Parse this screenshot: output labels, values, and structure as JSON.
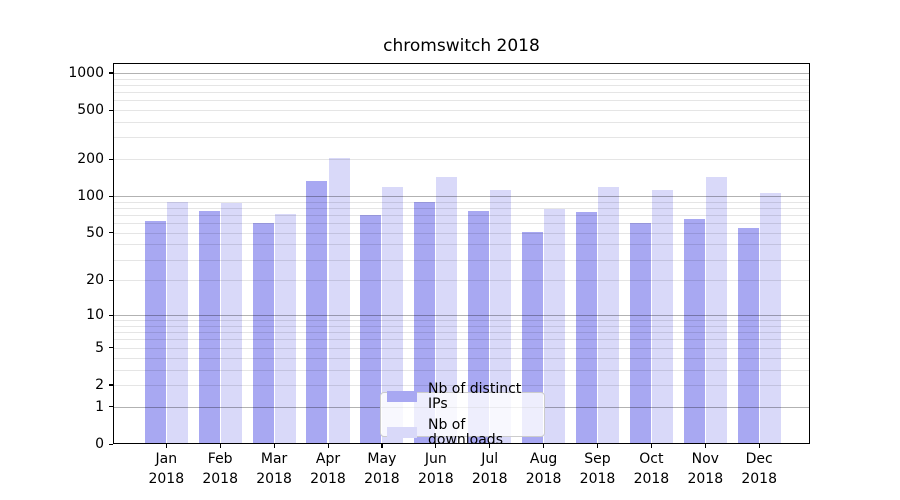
{
  "figure": {
    "title": "chromswitch 2018"
  },
  "chart_data": {
    "type": "bar",
    "title": "chromswitch 2018",
    "categories": [
      "Jan",
      "Feb",
      "Mar",
      "Apr",
      "May",
      "Jun",
      "Jul",
      "Aug",
      "Sep",
      "Oct",
      "Nov",
      "Dec"
    ],
    "year_label": "2018",
    "series": [
      {
        "name": "Nb of distinct IPs",
        "color": "#a8a8f2",
        "values": [
          63,
          76,
          60,
          132,
          70,
          90,
          75,
          51,
          74,
          60,
          65,
          55
        ]
      },
      {
        "name": "Nb of downloads",
        "color": "#d9d9f9",
        "values": [
          90,
          88,
          71,
          203,
          119,
          144,
          113,
          79,
          118,
          113,
          142,
          106
        ]
      }
    ],
    "xlabel": "",
    "ylabel": "",
    "y_scale": "log10(1+y)",
    "yticks": [
      0,
      1,
      2,
      5,
      10,
      20,
      50,
      100,
      200,
      500,
      1000
    ],
    "ylim": [
      0,
      1200
    ],
    "grid": "both",
    "grid_major_at": [
      1,
      10,
      100,
      1000
    ],
    "legend_position": "lower center"
  }
}
